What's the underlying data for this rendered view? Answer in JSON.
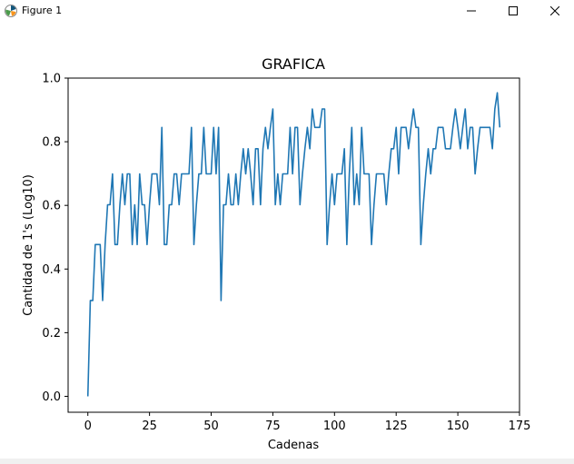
{
  "window": {
    "title": "Figure 1",
    "icons": {
      "app": "matplotlib-icon",
      "minimize": "minimize-icon",
      "maximize": "maximize-icon",
      "close": "close-icon"
    }
  },
  "chart_data": {
    "type": "line",
    "title": "GRAFICA",
    "xlabel": "Cadenas",
    "ylabel": "Cantidad de 1's (Log10)",
    "xlim": [
      -8,
      175
    ],
    "ylim": [
      -0.05,
      1.0
    ],
    "xticks": [
      0,
      25,
      50,
      75,
      100,
      125,
      150,
      175
    ],
    "xtick_labels": [
      "0",
      "25",
      "50",
      "75",
      "100",
      "125",
      "150",
      "175"
    ],
    "yticks": [
      0.0,
      0.2,
      0.4,
      0.6,
      0.8,
      1.0
    ],
    "ytick_labels": [
      "0.0",
      "0.2",
      "0.4",
      "0.6",
      "0.8",
      "1.0"
    ],
    "grid": false,
    "line_color": "#1f77b4",
    "series": [
      {
        "values": [
          0.0,
          0.301,
          0.301,
          0.477,
          0.477,
          0.477,
          0.301,
          0.477,
          0.602,
          0.602,
          0.699,
          0.477,
          0.477,
          0.602,
          0.699,
          0.602,
          0.699,
          0.699,
          0.477,
          0.602,
          0.477,
          0.699,
          0.602,
          0.602,
          0.477,
          0.602,
          0.699,
          0.699,
          0.699,
          0.602,
          0.845,
          0.477,
          0.477,
          0.602,
          0.602,
          0.699,
          0.699,
          0.602,
          0.699,
          0.699,
          0.699,
          0.699,
          0.845,
          0.477,
          0.602,
          0.699,
          0.699,
          0.845,
          0.699,
          0.699,
          0.699,
          0.845,
          0.699,
          0.845,
          0.301,
          0.602,
          0.602,
          0.699,
          0.602,
          0.602,
          0.699,
          0.602,
          0.699,
          0.778,
          0.699,
          0.778,
          0.699,
          0.602,
          0.778,
          0.778,
          0.602,
          0.778,
          0.845,
          0.778,
          0.845,
          0.903,
          0.602,
          0.699,
          0.602,
          0.699,
          0.699,
          0.699,
          0.845,
          0.699,
          0.845,
          0.845,
          0.602,
          0.699,
          0.778,
          0.845,
          0.778,
          0.903,
          0.845,
          0.845,
          0.845,
          0.903,
          0.903,
          0.477,
          0.602,
          0.699,
          0.602,
          0.699,
          0.699,
          0.699,
          0.778,
          0.477,
          0.699,
          0.845,
          0.602,
          0.699,
          0.602,
          0.845,
          0.699,
          0.699,
          0.699,
          0.477,
          0.602,
          0.699,
          0.699,
          0.699,
          0.699,
          0.602,
          0.699,
          0.778,
          0.778,
          0.845,
          0.699,
          0.845,
          0.845,
          0.845,
          0.778,
          0.845,
          0.903,
          0.845,
          0.845,
          0.477,
          0.602,
          0.699,
          0.778,
          0.699,
          0.778,
          0.778,
          0.845,
          0.845,
          0.845,
          0.778,
          0.778,
          0.778,
          0.845,
          0.903,
          0.845,
          0.778,
          0.845,
          0.903,
          0.778,
          0.845,
          0.845,
          0.699,
          0.778,
          0.845,
          0.845,
          0.845,
          0.845,
          0.845,
          0.778,
          0.903,
          0.954,
          0.845
        ]
      }
    ]
  }
}
